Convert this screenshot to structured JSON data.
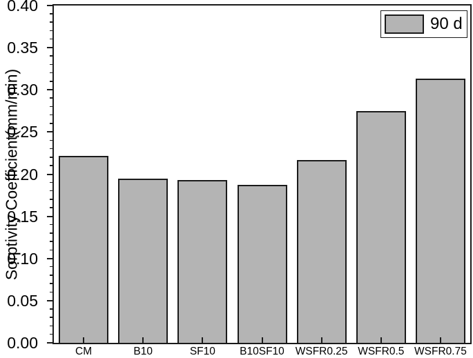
{
  "figure": {
    "background": "#ffffff",
    "bar_fill": "#b4b4b4",
    "axis_color": "#1a1a1a",
    "text_color": "#000000"
  },
  "legend": {
    "label": "90 d"
  },
  "chart_data": {
    "type": "bar",
    "title": "",
    "categories": [
      "CM",
      "B10",
      "SF10",
      "B10SF10",
      "WSFR0.25",
      "WSFR0.5",
      "WSFR0.75"
    ],
    "series": [
      {
        "name": "90 d",
        "values": [
          0.222,
          0.195,
          0.193,
          0.187,
          0.217,
          0.275,
          0.313
        ]
      }
    ],
    "xlabel": "",
    "ylabel": "Sorptivity Coefficient(mm/min)",
    "ylim": [
      0,
      0.4
    ],
    "y_major_step": 0.05,
    "y_minor_step": 0.01,
    "y_tick_labels": [
      "0.00",
      "0.05",
      "0.10",
      "0.15",
      "0.20",
      "0.25",
      "0.30",
      "0.35",
      "0.40"
    ],
    "grid": false,
    "legend_position": "top-right",
    "legend_label": "90 d",
    "bar_color": "#b4b4b4",
    "bar_border_color": "#1a1a1a"
  }
}
